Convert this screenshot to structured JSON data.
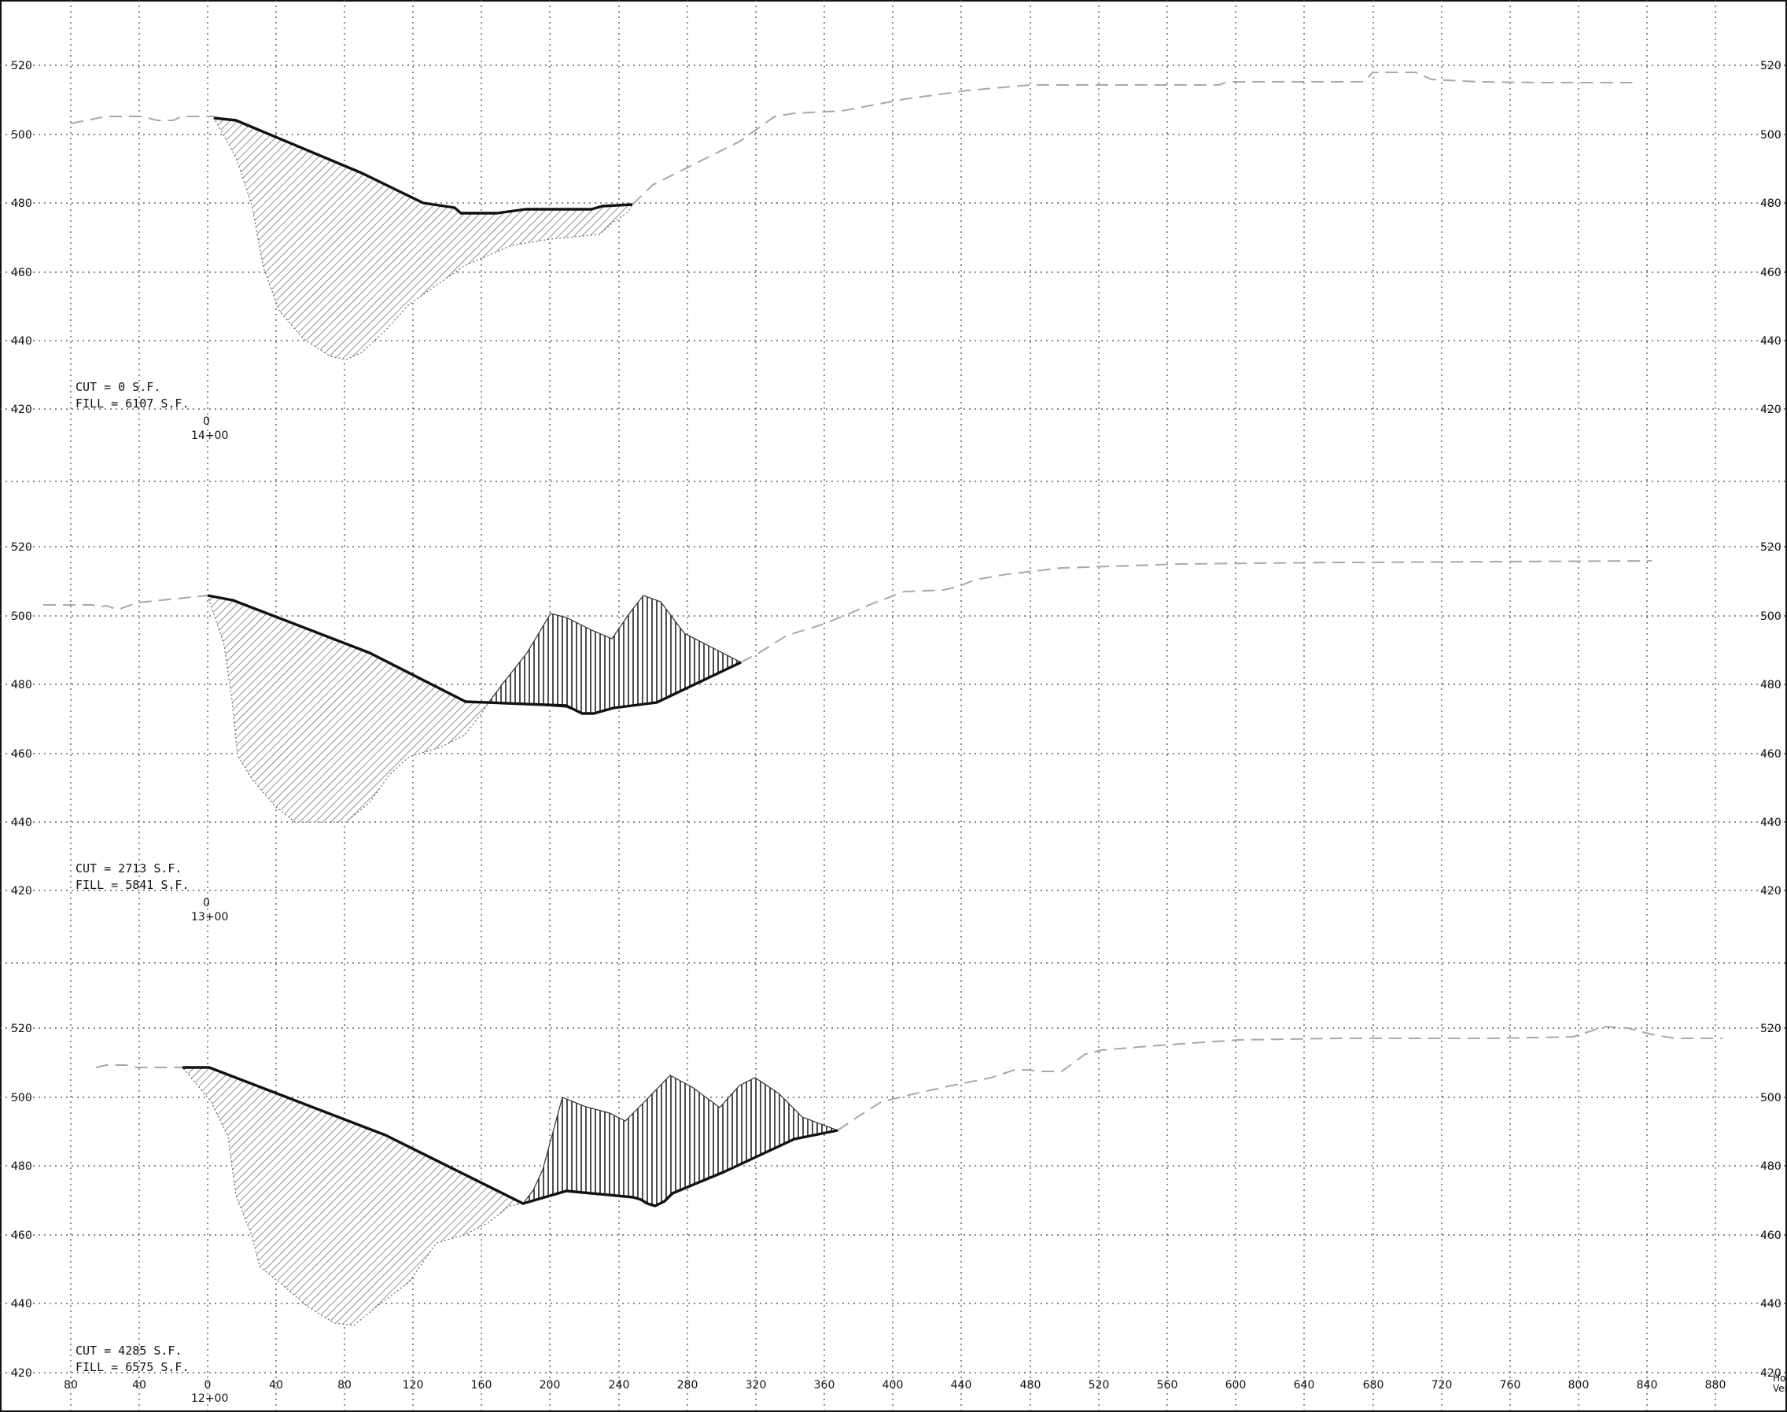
{
  "axes": {
    "x_ticks": [
      "80",
      "40",
      "0",
      "40",
      "80",
      "120",
      "160",
      "200",
      "240",
      "280",
      "320",
      "360",
      "400",
      "440",
      "480",
      "520",
      "560",
      "600",
      "640",
      "680",
      "720",
      "760",
      "800",
      "840",
      "880"
    ],
    "y_ticks": [
      "520",
      "500",
      "480",
      "460",
      "440",
      "420"
    ],
    "corner_label_top": "Ho",
    "corner_label_bottom": "Ver"
  },
  "sections": [
    {
      "station": "14+00",
      "offset_label": "0",
      "cut_text": "CUT =  0   S.F.",
      "fill_text": "FILL =  6107   S.F.",
      "cut_area_sf": 0,
      "fill_area_sf": 6107
    },
    {
      "station": "13+00",
      "offset_label": "0",
      "cut_text": "CUT =  2713   S.F.",
      "fill_text": "FILL =  5841   S.F.",
      "cut_area_sf": 2713,
      "fill_area_sf": 5841
    },
    {
      "station": "12+00",
      "offset_label": "",
      "cut_text": "CUT =  4285   S.F.",
      "fill_text": "FILL =  6575   S.F.",
      "cut_area_sf": 4285,
      "fill_area_sf": 6575
    }
  ]
}
